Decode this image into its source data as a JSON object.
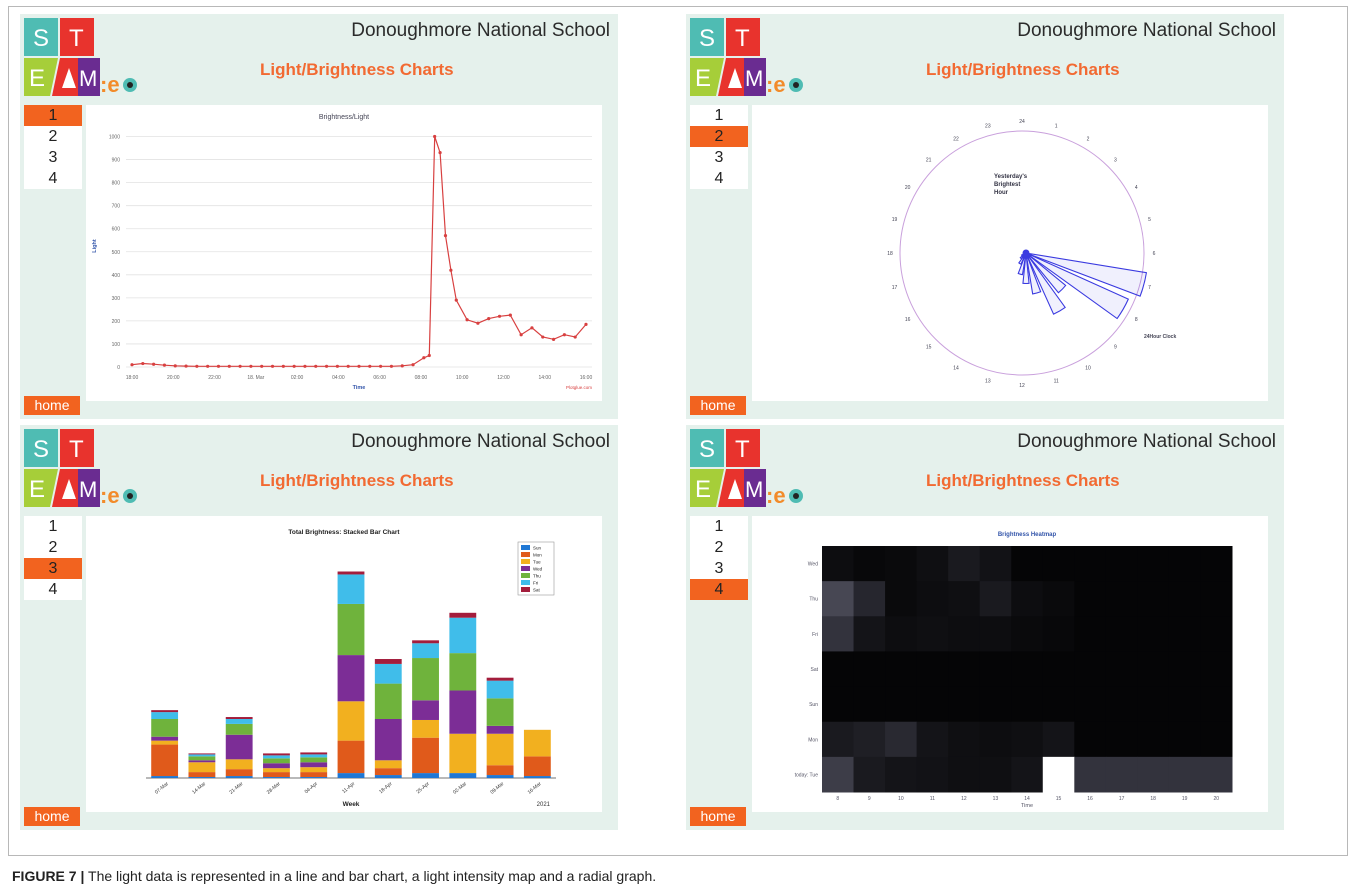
{
  "colors": {
    "panel_bg": "#e5f1ec",
    "accent": "#f2631f",
    "title_orange": "#f26a32",
    "line_red": "#d84040",
    "radial_blue": "#3a3ae0",
    "circle_purple": "#c9a0dc"
  },
  "logo": {
    "letters": [
      "S",
      "T",
      "E",
      "M",
      ":e",
      "d"
    ],
    "tile_colors": [
      "#4fbcb3",
      "#e8332d",
      "#a6ce39",
      "#6a2c91",
      "#e8332d",
      "#f28b2a"
    ]
  },
  "header": {
    "school_name": "Donoughmore National School",
    "page_title": "Light/Brightness Charts"
  },
  "nav": {
    "items": [
      "1",
      "2",
      "3",
      "4"
    ],
    "home_label": "home"
  },
  "panels": [
    {
      "active_index": 0
    },
    {
      "active_index": 1
    },
    {
      "active_index": 2
    },
    {
      "active_index": 3
    }
  ],
  "caption": {
    "prefix": "FIGURE 7 |",
    "text": " The light data is represented in a line and bar chart, a light intensity map and a radial graph."
  },
  "chart_data": [
    {
      "type": "line",
      "title": "Brightness/Light",
      "xlabel": "Time",
      "ylabel": "Light",
      "credit": "Plotglue.com",
      "x_ticks": [
        "18:00",
        "20:00",
        "22:00",
        "18. Mar",
        "02:00",
        "04:00",
        "06:00",
        "08:00",
        "10:00",
        "12:00",
        "14:00",
        "16:00"
      ],
      "y_ticks": [
        0,
        100,
        200,
        300,
        400,
        500,
        600,
        700,
        800,
        900,
        1000
      ],
      "ylim": [
        0,
        1050
      ],
      "grid": true,
      "x": [
        0,
        0.5,
        1,
        1.5,
        2,
        2.5,
        3,
        3.5,
        4,
        4.5,
        5,
        5.5,
        6,
        6.5,
        7,
        7.5,
        8,
        8.5,
        9,
        9.5,
        10,
        10.5,
        11,
        11.5,
        12,
        12.5,
        13,
        13.5,
        13.75,
        14,
        14.25,
        14.5,
        14.75,
        15,
        15.5,
        16,
        16.5,
        17,
        17.5,
        18,
        18.5,
        19,
        19.5,
        20,
        20.5,
        21
      ],
      "values": [
        10,
        15,
        12,
        8,
        5,
        4,
        3,
        3,
        3,
        3,
        3,
        3,
        3,
        3,
        3,
        3,
        3,
        3,
        3,
        3,
        3,
        3,
        3,
        3,
        3,
        5,
        10,
        40,
        50,
        1000,
        930,
        570,
        420,
        290,
        205,
        190,
        210,
        220,
        225,
        140,
        170,
        130,
        120,
        140,
        130,
        185
      ]
    },
    {
      "type": "radial",
      "annotation_title": [
        "Yesterday's",
        "Brightest",
        "Hour"
      ],
      "clock_label": "24Hour Clock",
      "hour_labels": [
        "24",
        "1",
        "2",
        "3",
        "4",
        "5",
        "6",
        "7",
        "8",
        "9",
        "10",
        "11",
        "12",
        "13",
        "14",
        "15",
        "16",
        "17",
        "18",
        "19",
        "20",
        "21",
        "22",
        "23"
      ],
      "rmax": 100,
      "bars": [
        {
          "hour": 7,
          "value": 100
        },
        {
          "hour": 8,
          "value": 92
        },
        {
          "hour": 9,
          "value": 42
        },
        {
          "hour": 10,
          "value": 55
        },
        {
          "hour": 11,
          "value": 34
        },
        {
          "hour": 12,
          "value": 25
        },
        {
          "hour": 13,
          "value": 18
        },
        {
          "hour": 14,
          "value": 10
        },
        {
          "hour": 15,
          "value": 6
        },
        {
          "hour": 16,
          "value": 4
        }
      ]
    },
    {
      "type": "bar",
      "stacked": true,
      "title": "Total Brightness: Stacked Bar Chart",
      "xlabel": "Week",
      "year_label": "2021",
      "legend_position": "top-right",
      "categories": [
        "07-Mar",
        "14-Mar",
        "21-Mar",
        "28-Mar",
        "04-Apr",
        "11-Apr",
        "18-Apr",
        "25-Apr",
        "02-Mar",
        "09-Mar",
        "16-Mar"
      ],
      "ylim": [
        0,
        240
      ],
      "series": [
        {
          "name": "Sun",
          "color": "#1f77d4",
          "values": [
            2,
            1,
            2,
            1,
            1,
            5,
            3,
            5,
            5,
            3,
            2
          ]
        },
        {
          "name": "Mon",
          "color": "#e05a1b",
          "values": [
            32,
            5,
            7,
            5,
            5,
            33,
            7,
            36,
            0,
            10,
            20
          ]
        },
        {
          "name": "Tue",
          "color": "#f2b01f",
          "values": [
            4,
            10,
            10,
            4,
            5,
            40,
            8,
            18,
            40,
            32,
            27
          ]
        },
        {
          "name": "Wed",
          "color": "#7c2d96",
          "values": [
            4,
            2,
            25,
            5,
            5,
            47,
            42,
            20,
            44,
            8,
            0
          ]
        },
        {
          "name": "Thu",
          "color": "#6fb33c",
          "values": [
            18,
            4,
            11,
            5,
            5,
            52,
            36,
            43,
            38,
            28,
            0
          ]
        },
        {
          "name": "Fri",
          "color": "#40bdea",
          "values": [
            7,
            2,
            5,
            3,
            3,
            30,
            20,
            15,
            36,
            18,
            0
          ]
        },
        {
          "name": "Sat",
          "color": "#a31d3c",
          "values": [
            2,
            1,
            2,
            2,
            2,
            3,
            5,
            3,
            5,
            3,
            0
          ]
        }
      ]
    },
    {
      "type": "heatmap",
      "title": "Brightness Heatmap",
      "xlabel": "Time",
      "rows": [
        "Wed",
        "Thu",
        "Fri",
        "Sat",
        "Sun",
        "Mon",
        "today: Tue"
      ],
      "cols": [
        "8",
        "9",
        "10",
        "11",
        "12",
        "13",
        "14",
        "15",
        "16",
        "17",
        "18",
        "19",
        "20"
      ],
      "values": [
        [
          0.05,
          0.03,
          0.04,
          0.06,
          0.1,
          0.07,
          0.02,
          0.02,
          0.02,
          0.02,
          0.02,
          0.02,
          0.02
        ],
        [
          0.28,
          0.15,
          0.04,
          0.05,
          0.06,
          0.1,
          0.05,
          0.04,
          0.02,
          0.02,
          0.02,
          0.02,
          0.02
        ],
        [
          0.2,
          0.08,
          0.05,
          0.06,
          0.05,
          0.05,
          0.04,
          0.03,
          0.02,
          0.02,
          0.02,
          0.02,
          0.02
        ],
        [
          0.02,
          0.02,
          0.02,
          0.02,
          0.02,
          0.02,
          0.02,
          0.02,
          0.02,
          0.02,
          0.02,
          0.02,
          0.02
        ],
        [
          0.02,
          0.02,
          0.02,
          0.02,
          0.02,
          0.02,
          0.02,
          0.02,
          0.02,
          0.02,
          0.02,
          0.02,
          0.02
        ],
        [
          0.1,
          0.12,
          0.16,
          0.08,
          0.06,
          0.05,
          0.06,
          0.08,
          0.02,
          0.02,
          0.02,
          0.02,
          0.02
        ],
        [
          0.24,
          0.1,
          0.08,
          0.07,
          0.06,
          0.06,
          0.08,
          1.0,
          0.2,
          0.2,
          0.2,
          0.2,
          0.2
        ]
      ]
    }
  ]
}
